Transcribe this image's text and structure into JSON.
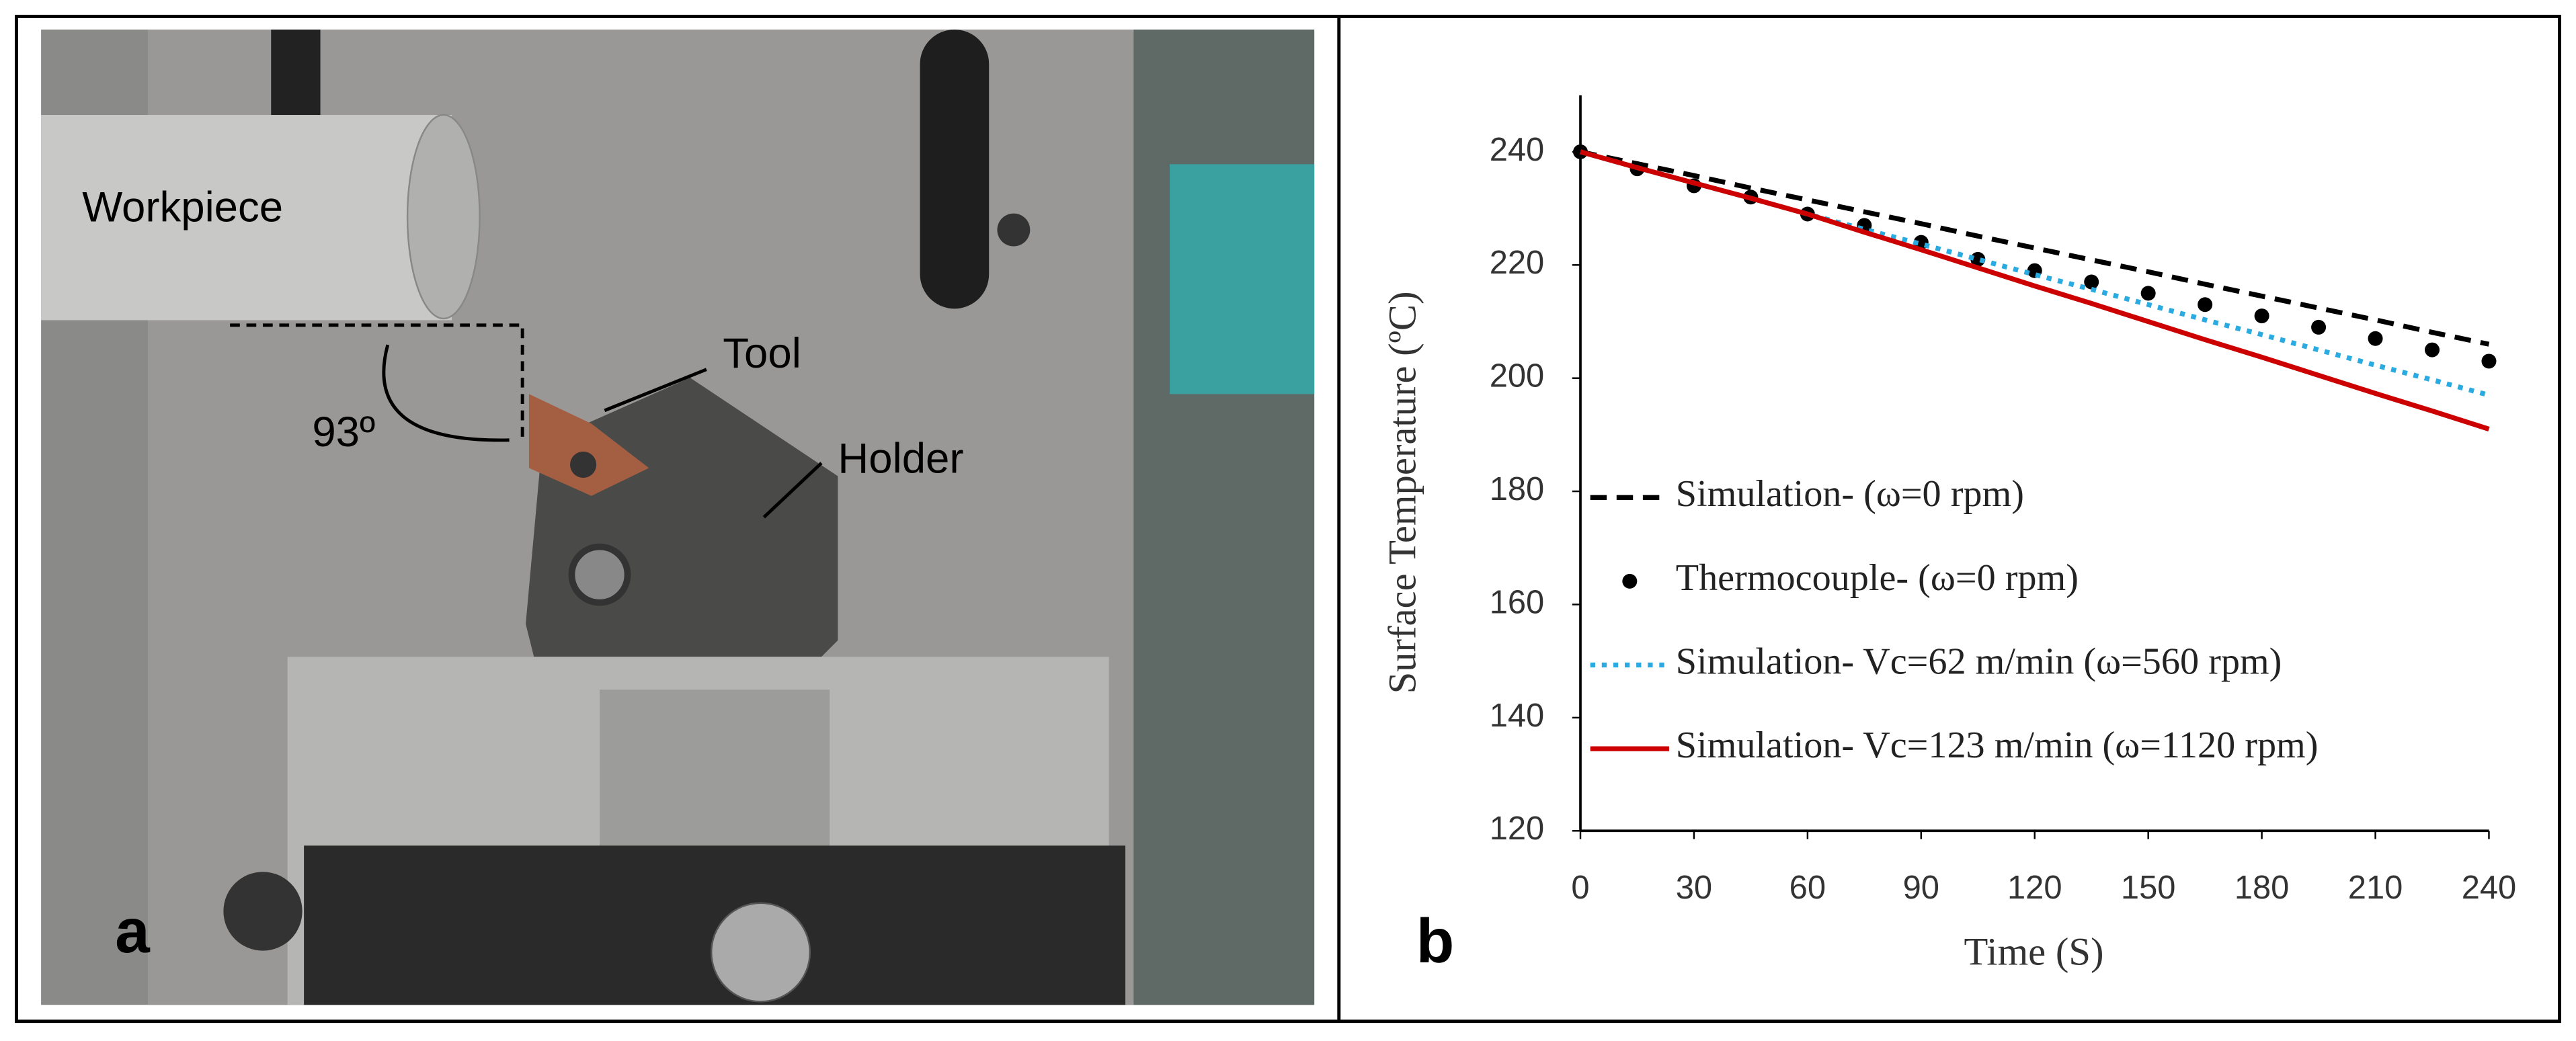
{
  "photo_panel": {
    "label": "a",
    "annotations": [
      "Workpiece",
      "Tool",
      "Holder",
      "93º"
    ]
  },
  "chart_data": {
    "type": "line",
    "panel_label": "b",
    "x_label": "Time (S)",
    "y_label": "Surface Temperature (ºC)",
    "x": [
      0,
      15,
      30,
      45,
      60,
      75,
      90,
      105,
      120,
      135,
      150,
      165,
      180,
      195,
      210,
      225,
      240
    ],
    "series": [
      {
        "name": "Simulation- (ω=0 rpm)",
        "color": "#000000",
        "style": "dashed",
        "values": [
          240,
          237.9,
          235.8,
          233.6,
          231.5,
          229.4,
          227.3,
          225.1,
          223,
          220.9,
          218.8,
          216.6,
          214.5,
          212.4,
          210.3,
          208.1,
          206
        ]
      },
      {
        "name": "Thermocouple- (ω=0 rpm)",
        "color": "#000000",
        "style": "markers",
        "values": [
          240,
          237,
          234,
          232,
          229,
          227,
          224,
          221,
          219,
          217,
          215,
          213,
          211,
          209,
          207,
          205,
          203
        ]
      },
      {
        "name": "Simulation- Vc=62 m/min (ω=560 rpm)",
        "color": "#29aae1",
        "style": "dotted",
        "values": [
          240,
          237.2,
          234.5,
          231.8,
          229,
          226.3,
          223.7,
          221,
          218.3,
          215.7,
          213,
          210.3,
          207.7,
          205,
          202.3,
          199.7,
          197
        ]
      },
      {
        "name": "Simulation- Vc=123 m/min (ω=1120 rpm)",
        "color": "#cc0000",
        "style": "solid",
        "values": [
          240,
          237.2,
          234.5,
          231.8,
          229,
          225.8,
          222.7,
          219.5,
          216.3,
          213.2,
          210,
          206.8,
          203.7,
          200.5,
          197.3,
          194.2,
          191
        ]
      }
    ],
    "xlim": [
      0,
      240
    ],
    "xticks": [
      0,
      30,
      60,
      90,
      120,
      150,
      180,
      210,
      240
    ],
    "ylim": [
      120,
      250
    ],
    "yticks": [
      120,
      140,
      160,
      180,
      200,
      220,
      240
    ],
    "grid": false,
    "legend": "lower left"
  }
}
